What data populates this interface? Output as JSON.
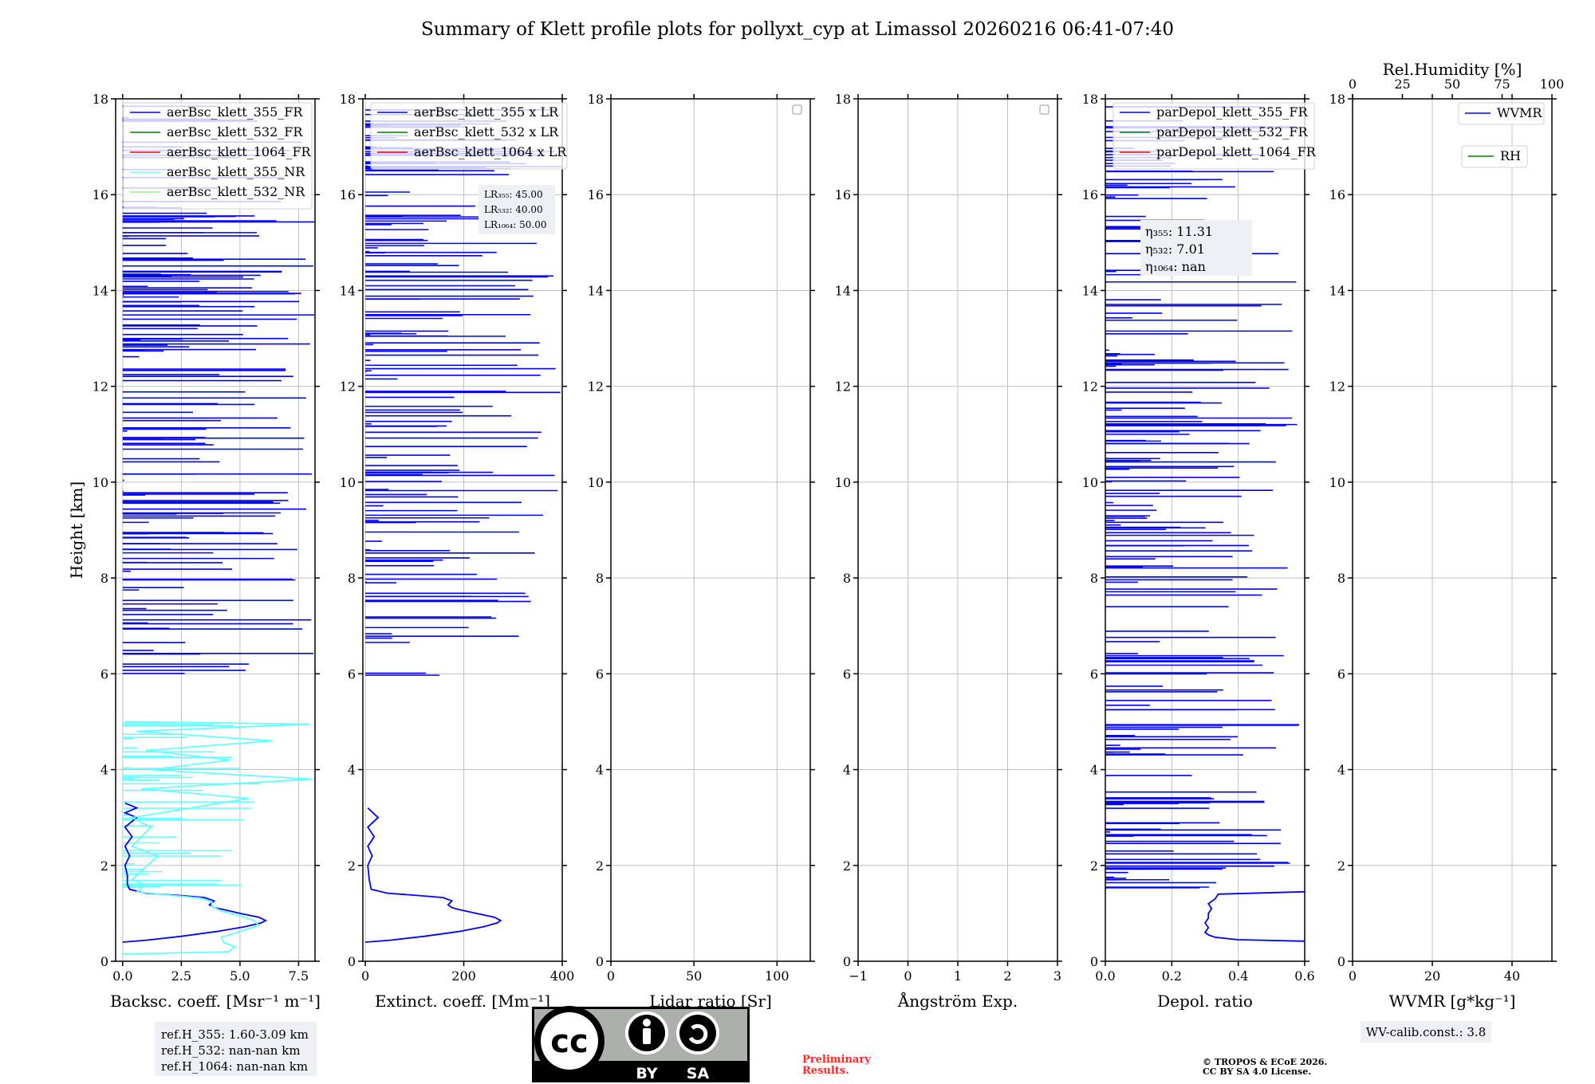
{
  "figure_title": "Summary of Klett profile plots for pollyxt_cyp at Limassol 20260216 06:41-07:40",
  "colors": {
    "c355": "#0000ff",
    "c532": "#008000",
    "c1064": "#ff0000",
    "c355nr": "#66ffff",
    "c532nr": "#90ee90",
    "grid": "#bfbfbf",
    "box": "#eef0f5"
  },
  "chart_data": [
    {
      "type": "line",
      "id": "backscatter",
      "xlabel": "Backsc. coeff. [Msr⁻¹ m⁻¹]",
      "ylabel": "Height [km]",
      "xlim": [
        -0.3,
        8.2
      ],
      "ylim": [
        0,
        18
      ],
      "xticks": [
        0,
        2.5,
        5.0,
        7.5
      ],
      "xticklabels": [
        "0.0",
        "2.5",
        "5.0",
        "7.5"
      ],
      "yticks": [
        0,
        2,
        4,
        6,
        8,
        10,
        12,
        14,
        16,
        18
      ],
      "legend": [
        "aerBsc_klett_355_FR",
        "aerBsc_klett_532_FR",
        "aerBsc_klett_1064_FR",
        "aerBsc_klett_355_NR",
        "aerBsc_klett_532_NR"
      ],
      "series": [
        {
          "name": "aerBsc_klett_355_FR",
          "points": [
            [
              0,
              0.4
            ],
            [
              1.0,
              0.44
            ],
            [
              2.5,
              0.52
            ],
            [
              4.0,
              0.62
            ],
            [
              5.2,
              0.72
            ],
            [
              5.9,
              0.8
            ],
            [
              6.1,
              0.85
            ],
            [
              5.8,
              0.92
            ],
            [
              5.0,
              1.0
            ],
            [
              4.3,
              1.08
            ],
            [
              3.9,
              1.12
            ],
            [
              3.7,
              1.18
            ],
            [
              3.9,
              1.26
            ],
            [
              3.5,
              1.33
            ],
            [
              2.5,
              1.37
            ],
            [
              1.0,
              1.42
            ],
            [
              0.3,
              1.5
            ],
            [
              0.2,
              1.6
            ],
            [
              0.2,
              1.8
            ],
            [
              0.1,
              2.0
            ],
            [
              0.3,
              2.2
            ],
            [
              0.1,
              2.4
            ],
            [
              0.4,
              2.6
            ],
            [
              0.1,
              2.8
            ],
            [
              0.6,
              3.0
            ],
            [
              0.1,
              3.1
            ],
            [
              0.6,
              3.2
            ],
            [
              0.1,
              3.3
            ]
          ]
        },
        {
          "name": "aerBsc_klett_355_NR",
          "points": [
            [
              0,
              0.15
            ],
            [
              4.5,
              0.2
            ],
            [
              4.8,
              0.3
            ],
            [
              4.3,
              0.4
            ],
            [
              4.2,
              0.5
            ],
            [
              5.0,
              0.62
            ],
            [
              5.8,
              0.75
            ],
            [
              5.6,
              0.85
            ],
            [
              5.0,
              0.95
            ],
            [
              4.2,
              1.05
            ],
            [
              3.8,
              1.15
            ],
            [
              3.8,
              1.25
            ],
            [
              3.3,
              1.32
            ],
            [
              2.0,
              1.38
            ],
            [
              0.6,
              1.45
            ],
            [
              1.0,
              1.6
            ],
            [
              0.4,
              1.7
            ],
            [
              1.5,
              2.2
            ],
            [
              0.4,
              2.4
            ],
            [
              1.2,
              2.8
            ],
            [
              0.4,
              3.0
            ],
            [
              5.4,
              3.4
            ],
            [
              0.8,
              3.6
            ],
            [
              8.1,
              3.8
            ],
            [
              1.2,
              4.0
            ],
            [
              4.6,
              4.2
            ],
            [
              1.0,
              4.4
            ],
            [
              6.4,
              4.6
            ],
            [
              0.6,
              4.8
            ],
            [
              8.0,
              4.95
            ],
            [
              0.1,
              5.0
            ]
          ]
        }
      ]
    },
    {
      "type": "line",
      "id": "extinction",
      "xlabel": "Extinct. coeff. [Mm⁻¹]",
      "xlim": [
        -5,
        400
      ],
      "ylim": [
        0,
        18
      ],
      "xticks": [
        0,
        200,
        400
      ],
      "xticklabels": [
        "0",
        "200",
        "400"
      ],
      "yticks": [
        0,
        2,
        4,
        6,
        8,
        10,
        12,
        14,
        16,
        18
      ],
      "legend": [
        "aerBsc_klett_355 x LR",
        "aerBsc_klett_532 x LR",
        "aerBsc_klett_1064 x LR"
      ],
      "annotation": [
        "LR₃₅₅: 45.00",
        "LR₅₃₂: 40.00",
        "LR₁₀₆₄: 50.00"
      ],
      "series": [
        {
          "name": "aerBsc_klett_355 x LR",
          "points": [
            [
              0,
              0.4
            ],
            [
              50,
              0.44
            ],
            [
              120,
              0.52
            ],
            [
              190,
              0.62
            ],
            [
              240,
              0.72
            ],
            [
              268,
              0.8
            ],
            [
              275,
              0.85
            ],
            [
              262,
              0.92
            ],
            [
              225,
              1.0
            ],
            [
              190,
              1.08
            ],
            [
              176,
              1.12
            ],
            [
              168,
              1.18
            ],
            [
              176,
              1.26
            ],
            [
              158,
              1.33
            ],
            [
              110,
              1.37
            ],
            [
              45,
              1.42
            ],
            [
              12,
              1.5
            ],
            [
              8,
              1.7
            ],
            [
              5,
              2.0
            ],
            [
              14,
              2.2
            ],
            [
              5,
              2.4
            ],
            [
              18,
              2.6
            ],
            [
              5,
              2.8
            ],
            [
              26,
              3.0
            ],
            [
              5,
              3.2
            ]
          ]
        }
      ]
    },
    {
      "type": "line",
      "id": "lidar-ratio",
      "xlabel": "Lidar ratio [Sr]",
      "xlim": [
        0,
        120
      ],
      "ylim": [
        0,
        18
      ],
      "xticks": [
        0,
        50,
        100
      ],
      "xticklabels": [
        "0",
        "50",
        "100"
      ],
      "yticks": [
        0,
        2,
        4,
        6,
        8,
        10,
        12,
        14,
        16,
        18
      ],
      "series": []
    },
    {
      "type": "line",
      "id": "angstrom",
      "xlabel": "Ångström Exp.",
      "xlim": [
        -1,
        3
      ],
      "ylim": [
        0,
        18
      ],
      "xticks": [
        -1,
        0,
        1,
        2,
        3
      ],
      "xticklabels": [
        "−1",
        "0",
        "1",
        "2",
        "3"
      ],
      "yticks": [
        0,
        2,
        4,
        6,
        8,
        10,
        12,
        14,
        16,
        18
      ],
      "series": []
    },
    {
      "type": "line",
      "id": "depol",
      "xlabel": "Depol. ratio",
      "xlim": [
        0,
        0.6
      ],
      "ylim": [
        0,
        18
      ],
      "xticks": [
        0,
        0.2,
        0.4,
        0.6
      ],
      "xticklabels": [
        "0.0",
        "0.2",
        "0.4",
        "0.6"
      ],
      "yticks": [
        0,
        2,
        4,
        6,
        8,
        10,
        12,
        14,
        16,
        18
      ],
      "legend": [
        "parDepol_klett_355_FR",
        "parDepol_klett_532_FR",
        "parDepol_klett_1064_FR"
      ],
      "annotation": [
        "η₃₅₅: 11.31",
        "η₅₃₂: 7.01",
        "η₁₀₆₄: nan"
      ],
      "series": [
        {
          "name": "parDepol_klett_355_FR",
          "points": [
            [
              0.6,
              0.42
            ],
            [
              0.4,
              0.45
            ],
            [
              0.33,
              0.5
            ],
            [
              0.31,
              0.55
            ],
            [
              0.3,
              0.6
            ],
            [
              0.31,
              0.7
            ],
            [
              0.3,
              0.8
            ],
            [
              0.31,
              0.9
            ],
            [
              0.31,
              1.0
            ],
            [
              0.32,
              1.1
            ],
            [
              0.31,
              1.2
            ],
            [
              0.33,
              1.3
            ],
            [
              0.34,
              1.4
            ],
            [
              0.6,
              1.45
            ]
          ]
        }
      ]
    },
    {
      "type": "line",
      "id": "wvmr",
      "xlabel": "WVMR [g*kg⁻¹]",
      "xlim": [
        0,
        50
      ],
      "ylim": [
        0,
        18
      ],
      "xticks": [
        0,
        20,
        40
      ],
      "xticklabels": [
        "0",
        "20",
        "40"
      ],
      "top_xlabel": "Rel.Humidity [%]",
      "top_xticks": [
        0,
        25,
        50,
        75,
        100
      ],
      "top_xticklabels": [
        "0",
        "25",
        "50",
        "75",
        "100"
      ],
      "yticks": [
        0,
        2,
        4,
        6,
        8,
        10,
        12,
        14,
        16,
        18
      ],
      "legend": [
        "WVMR",
        "RH"
      ],
      "series": []
    }
  ],
  "reference_heights": [
    "ref.H_355: 1.60-3.09 km",
    "ref.H_532: nan-nan km",
    "ref.H_1064: nan-nan km"
  ],
  "wv_calib": "WV-calib.const.: 3.8",
  "preliminary": [
    "Preliminary",
    "Results."
  ],
  "copyright": [
    "© TROPOS & ECoE 2026.",
    "CC BY SA 4.0 License."
  ],
  "license_badge": {
    "cc": "cc",
    "by": "BY",
    "sa": "SA"
  }
}
